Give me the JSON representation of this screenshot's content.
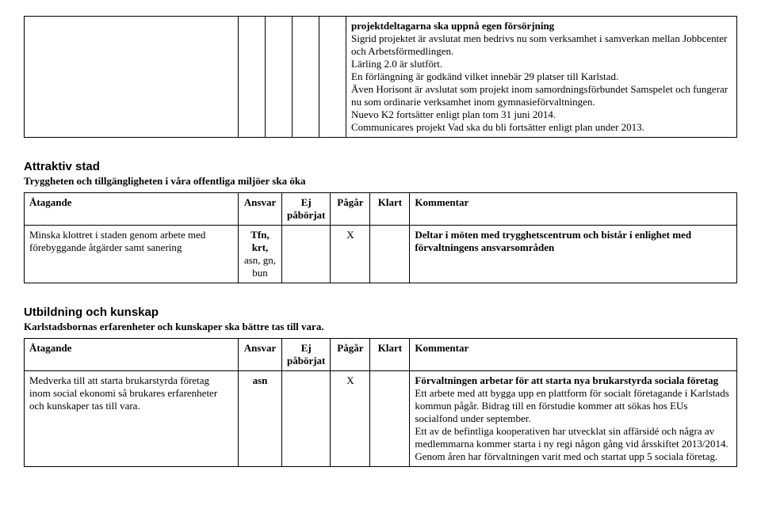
{
  "top_block": {
    "p1": "projektdeltagarna ska uppnå egen försörjning",
    "p2": "Sigrid projektet är avslutat men bedrivs nu som verksamhet i samverkan mellan Jobbcenter och Arbetsförmedlingen.",
    "p3": "Lärling 2.0 är slutfört.",
    "p4": "En förlängning är godkänd vilket innebär 29 platser till Karlstad.",
    "p5": "Även Horisont är avslutat som projekt inom samordningsförbundet Samspelet och fungerar nu som ordinarie verksamhet inom gymnasieförvaltningen.",
    "p6": "Nuevo K2 fortsätter enligt plan tom 31 juni 2014.",
    "p7": "Communicares projekt Vad ska du bli fortsätter enligt plan under 2013."
  },
  "headers": {
    "atagande": "Åtagande",
    "ansvar": "Ansvar",
    "ej": "Ej påbörjat",
    "pagar": "Pågår",
    "klart": "Klart",
    "kommentar": "Kommentar"
  },
  "section1": {
    "title": "Attraktiv stad",
    "sub": "Tryggheten och tillgängligheten i våra offentliga miljöer ska öka",
    "row": {
      "atagande": "Minska klottret i staden genom arbete med förebyggande åtgärder samt sanering",
      "ansvar": "Tfn, krt, asn, gn, bun",
      "ansvar_bold": "Tfn, krt,",
      "ansvar_rest": "asn, gn, bun",
      "pagar": "X",
      "komm": "Deltar i möten med trygghetscentrum och bistår i enlighet med förvaltningens ansvarsområden"
    }
  },
  "section2": {
    "title": "Utbildning och kunskap",
    "sub": "Karlstadsbornas erfarenheter och kunskaper ska bättre tas till vara.",
    "row": {
      "atagande": "Medverka till att starta brukarstyrda företag inom social ekonomi så brukares erfarenheter och kunskaper tas till vara.",
      "ansvar": "asn",
      "pagar": "X",
      "komm_bold": "Förvaltningen arbetar för att starta nya brukarstyrda sociala företag",
      "komm_p1": "Ett arbete med att bygga upp en plattform för socialt företagande i Karlstads kommun pågår. Bidrag till en förstudie kommer att sökas hos EUs socialfond under september.",
      "komm_p2": "Ett av de befintliga kooperativen har utvecklat sin affärsidé och några av medlemmarna kommer starta i ny regi någon gång vid årsskiftet 2013/2014.",
      "komm_p3": "Genom åren har förvaltningen varit med och startat upp 5 sociala företag."
    }
  }
}
